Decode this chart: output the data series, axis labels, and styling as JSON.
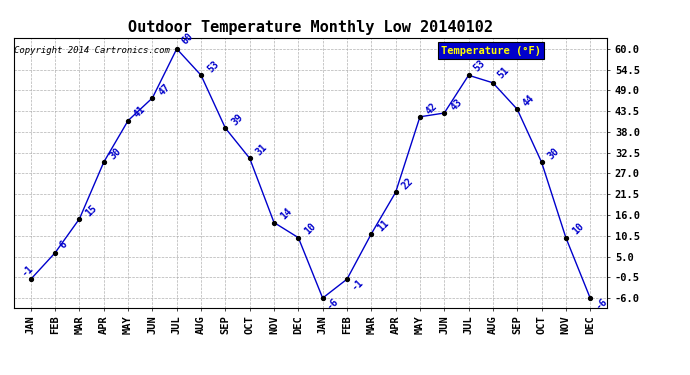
{
  "title": "Outdoor Temperature Monthly Low 20140102",
  "copyright": "Copyright 2014 Cartronics.com",
  "legend_label": "Temperature (°F)",
  "months": [
    "JAN",
    "FEB",
    "MAR",
    "APR",
    "MAY",
    "JUN",
    "JUL",
    "AUG",
    "SEP",
    "OCT",
    "NOV",
    "DEC",
    "JAN",
    "FEB",
    "MAR",
    "APR",
    "MAY",
    "JUN",
    "JUL",
    "AUG",
    "SEP",
    "OCT",
    "NOV",
    "DEC"
  ],
  "values": [
    -1,
    6,
    15,
    30,
    41,
    47,
    60,
    53,
    39,
    31,
    14,
    10,
    -6,
    -1,
    11,
    22,
    42,
    43,
    53,
    51,
    44,
    30,
    10,
    -6
  ],
  "labels": [
    "-1",
    "6",
    "15",
    "30",
    "41",
    "47",
    "60",
    "53",
    "39",
    "31",
    "14",
    "10",
    "-6",
    "-1",
    "11",
    "22",
    "42",
    "43",
    "53",
    "51",
    "44",
    "30",
    "10",
    "-6"
  ],
  "ylim": [
    -8.5,
    63
  ],
  "yticks": [
    -6.0,
    -0.5,
    5.0,
    10.5,
    16.0,
    21.5,
    27.0,
    32.5,
    38.0,
    43.5,
    49.0,
    54.5,
    60.0
  ],
  "line_color": "#0000cc",
  "marker_color": "#000000",
  "bg_color": "#ffffff",
  "grid_color": "#aaaaaa",
  "title_color": "#000000",
  "legend_bg": "#0000cc",
  "legend_fg": "#ffff00",
  "label_color": "#0000cc",
  "title_fontsize": 11,
  "tick_fontsize": 7.5,
  "label_fontsize": 7,
  "copyright_fontsize": 6.5
}
